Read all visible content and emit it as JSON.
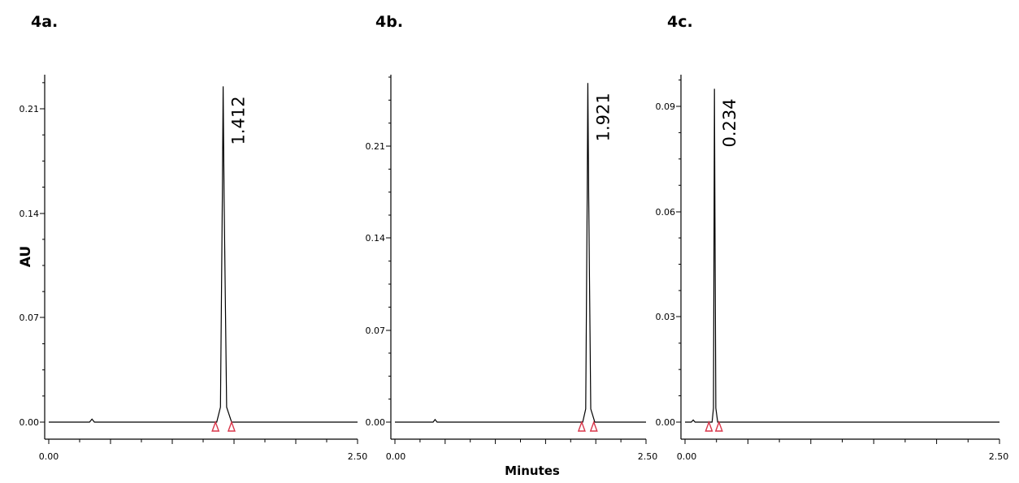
{
  "chart_data": [
    {
      "type": "line",
      "panel_label": "4a.",
      "ylabel": "AU",
      "xlabel": "",
      "xlim": [
        0.0,
        2.5
      ],
      "ylim": [
        0.0,
        0.225
      ],
      "x_tick_labels": [
        "0.00",
        "2.50"
      ],
      "y_ticks": [
        0.0,
        0.07,
        0.14,
        0.21
      ],
      "y_tick_labels": [
        "0.00",
        "0.07",
        "0.14",
        "0.21"
      ],
      "series": [
        {
          "points": [
            {
              "x": 0.0,
              "y": 0.0
            },
            {
              "x": 0.33,
              "y": 0.0
            },
            {
              "x": 0.35,
              "y": 0.002
            },
            {
              "x": 0.37,
              "y": 0.0
            },
            {
              "x": 1.36,
              "y": 0.0
            },
            {
              "x": 1.39,
              "y": 0.01
            },
            {
              "x": 1.405,
              "y": 0.15
            },
            {
              "x": 1.412,
              "y": 0.225
            },
            {
              "x": 1.42,
              "y": 0.15
            },
            {
              "x": 1.44,
              "y": 0.01
            },
            {
              "x": 1.48,
              "y": 0.0
            },
            {
              "x": 2.5,
              "y": 0.0
            }
          ]
        }
      ],
      "peak": {
        "x": 1.412,
        "y": 0.225,
        "label": "1.412"
      },
      "integration_markers": [
        1.35,
        1.48
      ],
      "marker_color": "#d9364a"
    },
    {
      "type": "line",
      "panel_label": "4b.",
      "ylabel": "",
      "xlabel": "Minutes",
      "xlim": [
        0.0,
        2.5
      ],
      "ylim": [
        0.0,
        0.26
      ],
      "x_tick_labels": [
        "0.00",
        "2.50"
      ],
      "y_ticks": [
        0.0,
        0.07,
        0.14,
        0.21
      ],
      "y_tick_labels": [
        "0.00",
        "0.07",
        "0.14",
        "0.21"
      ],
      "series": [
        {
          "points": [
            {
              "x": 0.0,
              "y": 0.0
            },
            {
              "x": 0.38,
              "y": 0.0
            },
            {
              "x": 0.4,
              "y": 0.002
            },
            {
              "x": 0.42,
              "y": 0.0
            },
            {
              "x": 1.87,
              "y": 0.0
            },
            {
              "x": 1.9,
              "y": 0.01
            },
            {
              "x": 1.914,
              "y": 0.17
            },
            {
              "x": 1.921,
              "y": 0.258
            },
            {
              "x": 1.93,
              "y": 0.17
            },
            {
              "x": 1.95,
              "y": 0.01
            },
            {
              "x": 1.99,
              "y": 0.0
            },
            {
              "x": 2.5,
              "y": 0.0
            }
          ]
        }
      ],
      "peak": {
        "x": 1.921,
        "y": 0.258,
        "label": "1.921"
      },
      "integration_markers": [
        1.86,
        1.98
      ],
      "marker_color": "#d9364a"
    },
    {
      "type": "line",
      "panel_label": "4c.",
      "ylabel": "",
      "xlabel": "",
      "xlim": [
        0.0,
        2.5
      ],
      "ylim": [
        0.0,
        0.096
      ],
      "x_tick_labels": [
        "0.00",
        "2.50"
      ],
      "y_ticks": [
        0.0,
        0.03,
        0.06,
        0.09
      ],
      "y_tick_labels": [
        "0.00",
        "0.03",
        "0.06",
        "0.09"
      ],
      "series": [
        {
          "points": [
            {
              "x": 0.0,
              "y": 0.0
            },
            {
              "x": 0.05,
              "y": 0.0
            },
            {
              "x": 0.065,
              "y": 0.0006
            },
            {
              "x": 0.08,
              "y": 0.0
            },
            {
              "x": 0.215,
              "y": 0.0
            },
            {
              "x": 0.226,
              "y": 0.004
            },
            {
              "x": 0.231,
              "y": 0.06
            },
            {
              "x": 0.234,
              "y": 0.095
            },
            {
              "x": 0.238,
              "y": 0.06
            },
            {
              "x": 0.245,
              "y": 0.004
            },
            {
              "x": 0.26,
              "y": 0.0
            },
            {
              "x": 2.5,
              "y": 0.0
            }
          ]
        }
      ],
      "peak": {
        "x": 0.234,
        "y": 0.095,
        "label": "0.234"
      },
      "integration_markers": [
        0.19,
        0.27
      ],
      "marker_color": "#d9364a"
    }
  ]
}
